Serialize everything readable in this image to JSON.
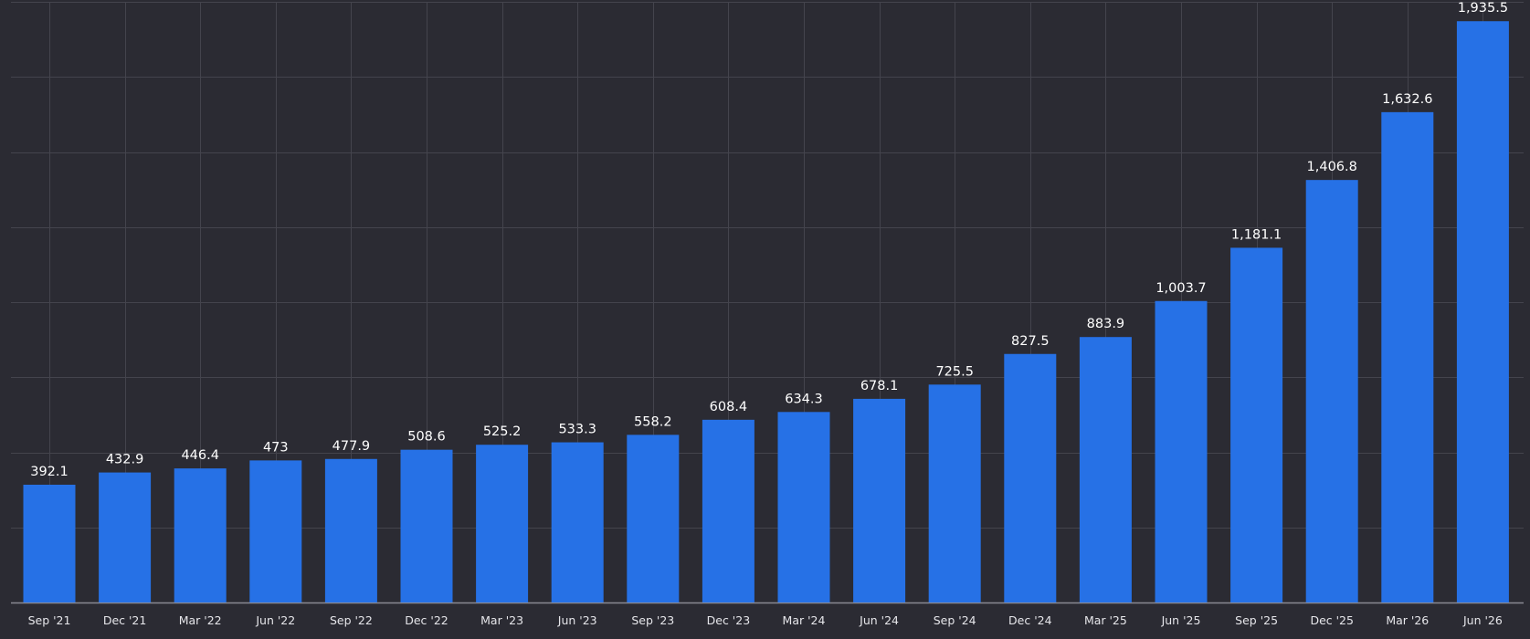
{
  "chart_data": {
    "type": "bar",
    "title": "",
    "xlabel": "",
    "ylabel": "",
    "categories": [
      "Sep '21",
      "Dec '21",
      "Mar '22",
      "Jun '22",
      "Sep '22",
      "Dec '22",
      "Mar '23",
      "Jun '23",
      "Sep '23",
      "Dec '23",
      "Mar '24",
      "Jun '24",
      "Sep '24",
      "Dec '24",
      "Mar '25",
      "Jun '25",
      "Sep '25",
      "Dec '25",
      "Mar '26",
      "Jun '26"
    ],
    "values": [
      392.1,
      432.9,
      446.4,
      473,
      477.9,
      508.6,
      525.2,
      533.3,
      558.2,
      608.4,
      634.3,
      678.1,
      725.5,
      827.5,
      883.9,
      1003.7,
      1181.1,
      1406.8,
      1632.6,
      1935.5
    ],
    "value_labels": [
      "392.1",
      "432.9",
      "446.4",
      "473",
      "477.9",
      "508.6",
      "525.2",
      "533.3",
      "558.2",
      "608.4",
      "634.3",
      "678.1",
      "725.5",
      "827.5",
      "883.9",
      "1,003.7",
      "1,181.1",
      "1,406.8",
      "1,632.6",
      "1,935.5"
    ],
    "ylim": [
      0,
      2000
    ],
    "y_gridlines": [
      0,
      250,
      500,
      750,
      1000,
      1250,
      1500,
      1750,
      2000
    ],
    "grid": true,
    "legend": "none",
    "colors": {
      "background": "#2b2b33",
      "bar": "#2671e6",
      "grid": "#44444d",
      "baseline": "#8a8a93",
      "text": "#ffffff"
    }
  }
}
